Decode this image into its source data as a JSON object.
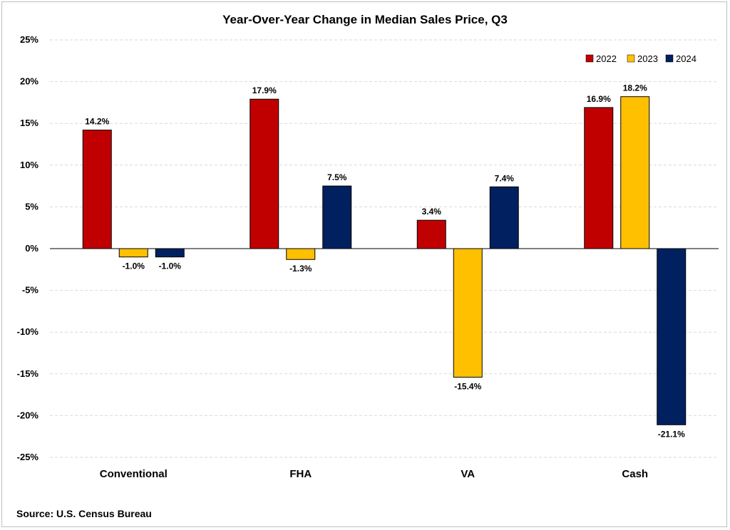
{
  "chart_data": {
    "type": "bar",
    "title": "Year-Over-Year Change in Median Sales Price, Q3",
    "categories": [
      "Conventional",
      "FHA",
      "VA",
      "Cash"
    ],
    "series": [
      {
        "name": "2022",
        "color": "#c00000",
        "values": [
          14.2,
          17.9,
          3.4,
          16.9
        ],
        "labels": [
          "14.2%",
          "17.9%",
          "3.4%",
          "16.9%"
        ]
      },
      {
        "name": "2023",
        "color": "#ffc000",
        "values": [
          -1.0,
          -1.3,
          -15.4,
          18.2
        ],
        "labels": [
          "-1.0%",
          "-1.3%",
          "-15.4%",
          "18.2%"
        ]
      },
      {
        "name": "2024",
        "color": "#002060",
        "values": [
          -1.0,
          7.5,
          7.4,
          -21.1
        ],
        "labels": [
          "-1.0%",
          "7.5%",
          "7.4%",
          "-21.1%"
        ]
      }
    ],
    "ylim": [
      -25,
      25
    ],
    "yticks": [
      25,
      20,
      15,
      10,
      5,
      0,
      -5,
      -10,
      -15,
      -20,
      -25
    ],
    "ytick_labels": [
      "25%",
      "20%",
      "15%",
      "10%",
      "5%",
      "0%",
      "-5%",
      "-10%",
      "-15%",
      "-20%",
      "-25%"
    ],
    "grid": true,
    "legend_position": "top-right"
  },
  "source": "Source: U.S. Census Bureau"
}
